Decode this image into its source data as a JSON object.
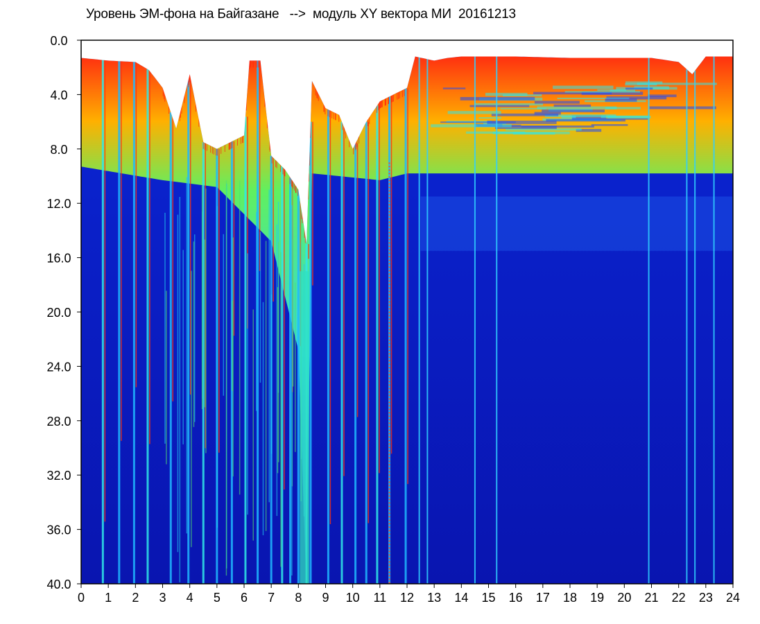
{
  "chart_data": {
    "type": "heatmap",
    "title": "Уровень ЭМ-фона на Байгазане   -->  модуль XY вектора МИ  20161213",
    "xlabel": "",
    "ylabel": "",
    "x_range": [
      0,
      24
    ],
    "y_range": [
      0.0,
      40.0
    ],
    "y_inverted": true,
    "x_ticks": [
      "0",
      "1",
      "2",
      "3",
      "4",
      "5",
      "6",
      "7",
      "8",
      "9",
      "10",
      "11",
      "12",
      "13",
      "14",
      "15",
      "16",
      "17",
      "18",
      "19",
      "20",
      "21",
      "22",
      "23",
      "24"
    ],
    "y_ticks": [
      "0.0",
      "4.0",
      "8.0",
      "12.0",
      "16.0",
      "20.0",
      "24.0",
      "28.0",
      "32.0",
      "36.0",
      "40.0"
    ],
    "colorscale": [
      "#0010c8",
      "#0a3ef0",
      "#1aa0ff",
      "#30e8e8",
      "#60f060",
      "#d8f000",
      "#ff3010",
      "#ffffff"
    ],
    "background_color": "#0a14b8",
    "noise_top_by_hour": [
      {
        "x": 0.0,
        "y": 1.3
      },
      {
        "x": 1.0,
        "y": 1.5
      },
      {
        "x": 2.0,
        "y": 1.6
      },
      {
        "x": 2.5,
        "y": 2.2
      },
      {
        "x": 3.0,
        "y": 3.5
      },
      {
        "x": 3.5,
        "y": 6.5
      },
      {
        "x": 4.0,
        "y": 2.5
      },
      {
        "x": 4.5,
        "y": 7.5
      },
      {
        "x": 5.0,
        "y": 8.0
      },
      {
        "x": 5.5,
        "y": 7.5
      },
      {
        "x": 6.0,
        "y": 7.0
      },
      {
        "x": 6.2,
        "y": 1.5
      },
      {
        "x": 6.6,
        "y": 1.5
      },
      {
        "x": 7.0,
        "y": 8.5
      },
      {
        "x": 7.5,
        "y": 9.5
      },
      {
        "x": 8.0,
        "y": 11.0
      },
      {
        "x": 8.3,
        "y": 15.0
      },
      {
        "x": 8.5,
        "y": 3.0
      },
      {
        "x": 9.0,
        "y": 5.0
      },
      {
        "x": 9.5,
        "y": 5.5
      },
      {
        "x": 10.0,
        "y": 8.0
      },
      {
        "x": 10.5,
        "y": 6.0
      },
      {
        "x": 11.0,
        "y": 4.5
      },
      {
        "x": 11.5,
        "y": 4.0
      },
      {
        "x": 12.0,
        "y": 3.5
      },
      {
        "x": 12.3,
        "y": 1.2
      },
      {
        "x": 13.0,
        "y": 1.5
      },
      {
        "x": 13.5,
        "y": 1.3
      },
      {
        "x": 14.0,
        "y": 1.2
      },
      {
        "x": 15.0,
        "y": 1.2
      },
      {
        "x": 16.0,
        "y": 1.2
      },
      {
        "x": 18.0,
        "y": 1.3
      },
      {
        "x": 20.0,
        "y": 1.3
      },
      {
        "x": 21.0,
        "y": 1.3
      },
      {
        "x": 22.0,
        "y": 1.6
      },
      {
        "x": 22.5,
        "y": 2.5
      },
      {
        "x": 23.0,
        "y": 1.2
      },
      {
        "x": 24.0,
        "y": 1.2
      }
    ],
    "bright_band_top_by_hour": [
      {
        "x": 0.0,
        "y": 8.5
      },
      {
        "x": 3.0,
        "y": 9.5
      },
      {
        "x": 5.0,
        "y": 10.0
      },
      {
        "x": 7.0,
        "y": 14.0
      },
      {
        "x": 8.0,
        "y": 22.0
      },
      {
        "x": 8.3,
        "y": 40.0
      },
      {
        "x": 8.5,
        "y": 9.0
      },
      {
        "x": 11.0,
        "y": 9.5
      },
      {
        "x": 12.0,
        "y": 9.0
      },
      {
        "x": 24.0,
        "y": 9.0
      }
    ],
    "strong_vertical_lines_hours": [
      0.8,
      1.4,
      1.95,
      2.45,
      3.3,
      3.95,
      4.5,
      5.0,
      5.55,
      6.05,
      6.5,
      7.0,
      7.4,
      7.7,
      8.0,
      8.3,
      8.45,
      9.1,
      9.6,
      10.1,
      10.5,
      10.9,
      11.35,
      11.95,
      12.45,
      12.75,
      14.5,
      15.3,
      20.9,
      22.3,
      22.6,
      23.3
    ]
  }
}
